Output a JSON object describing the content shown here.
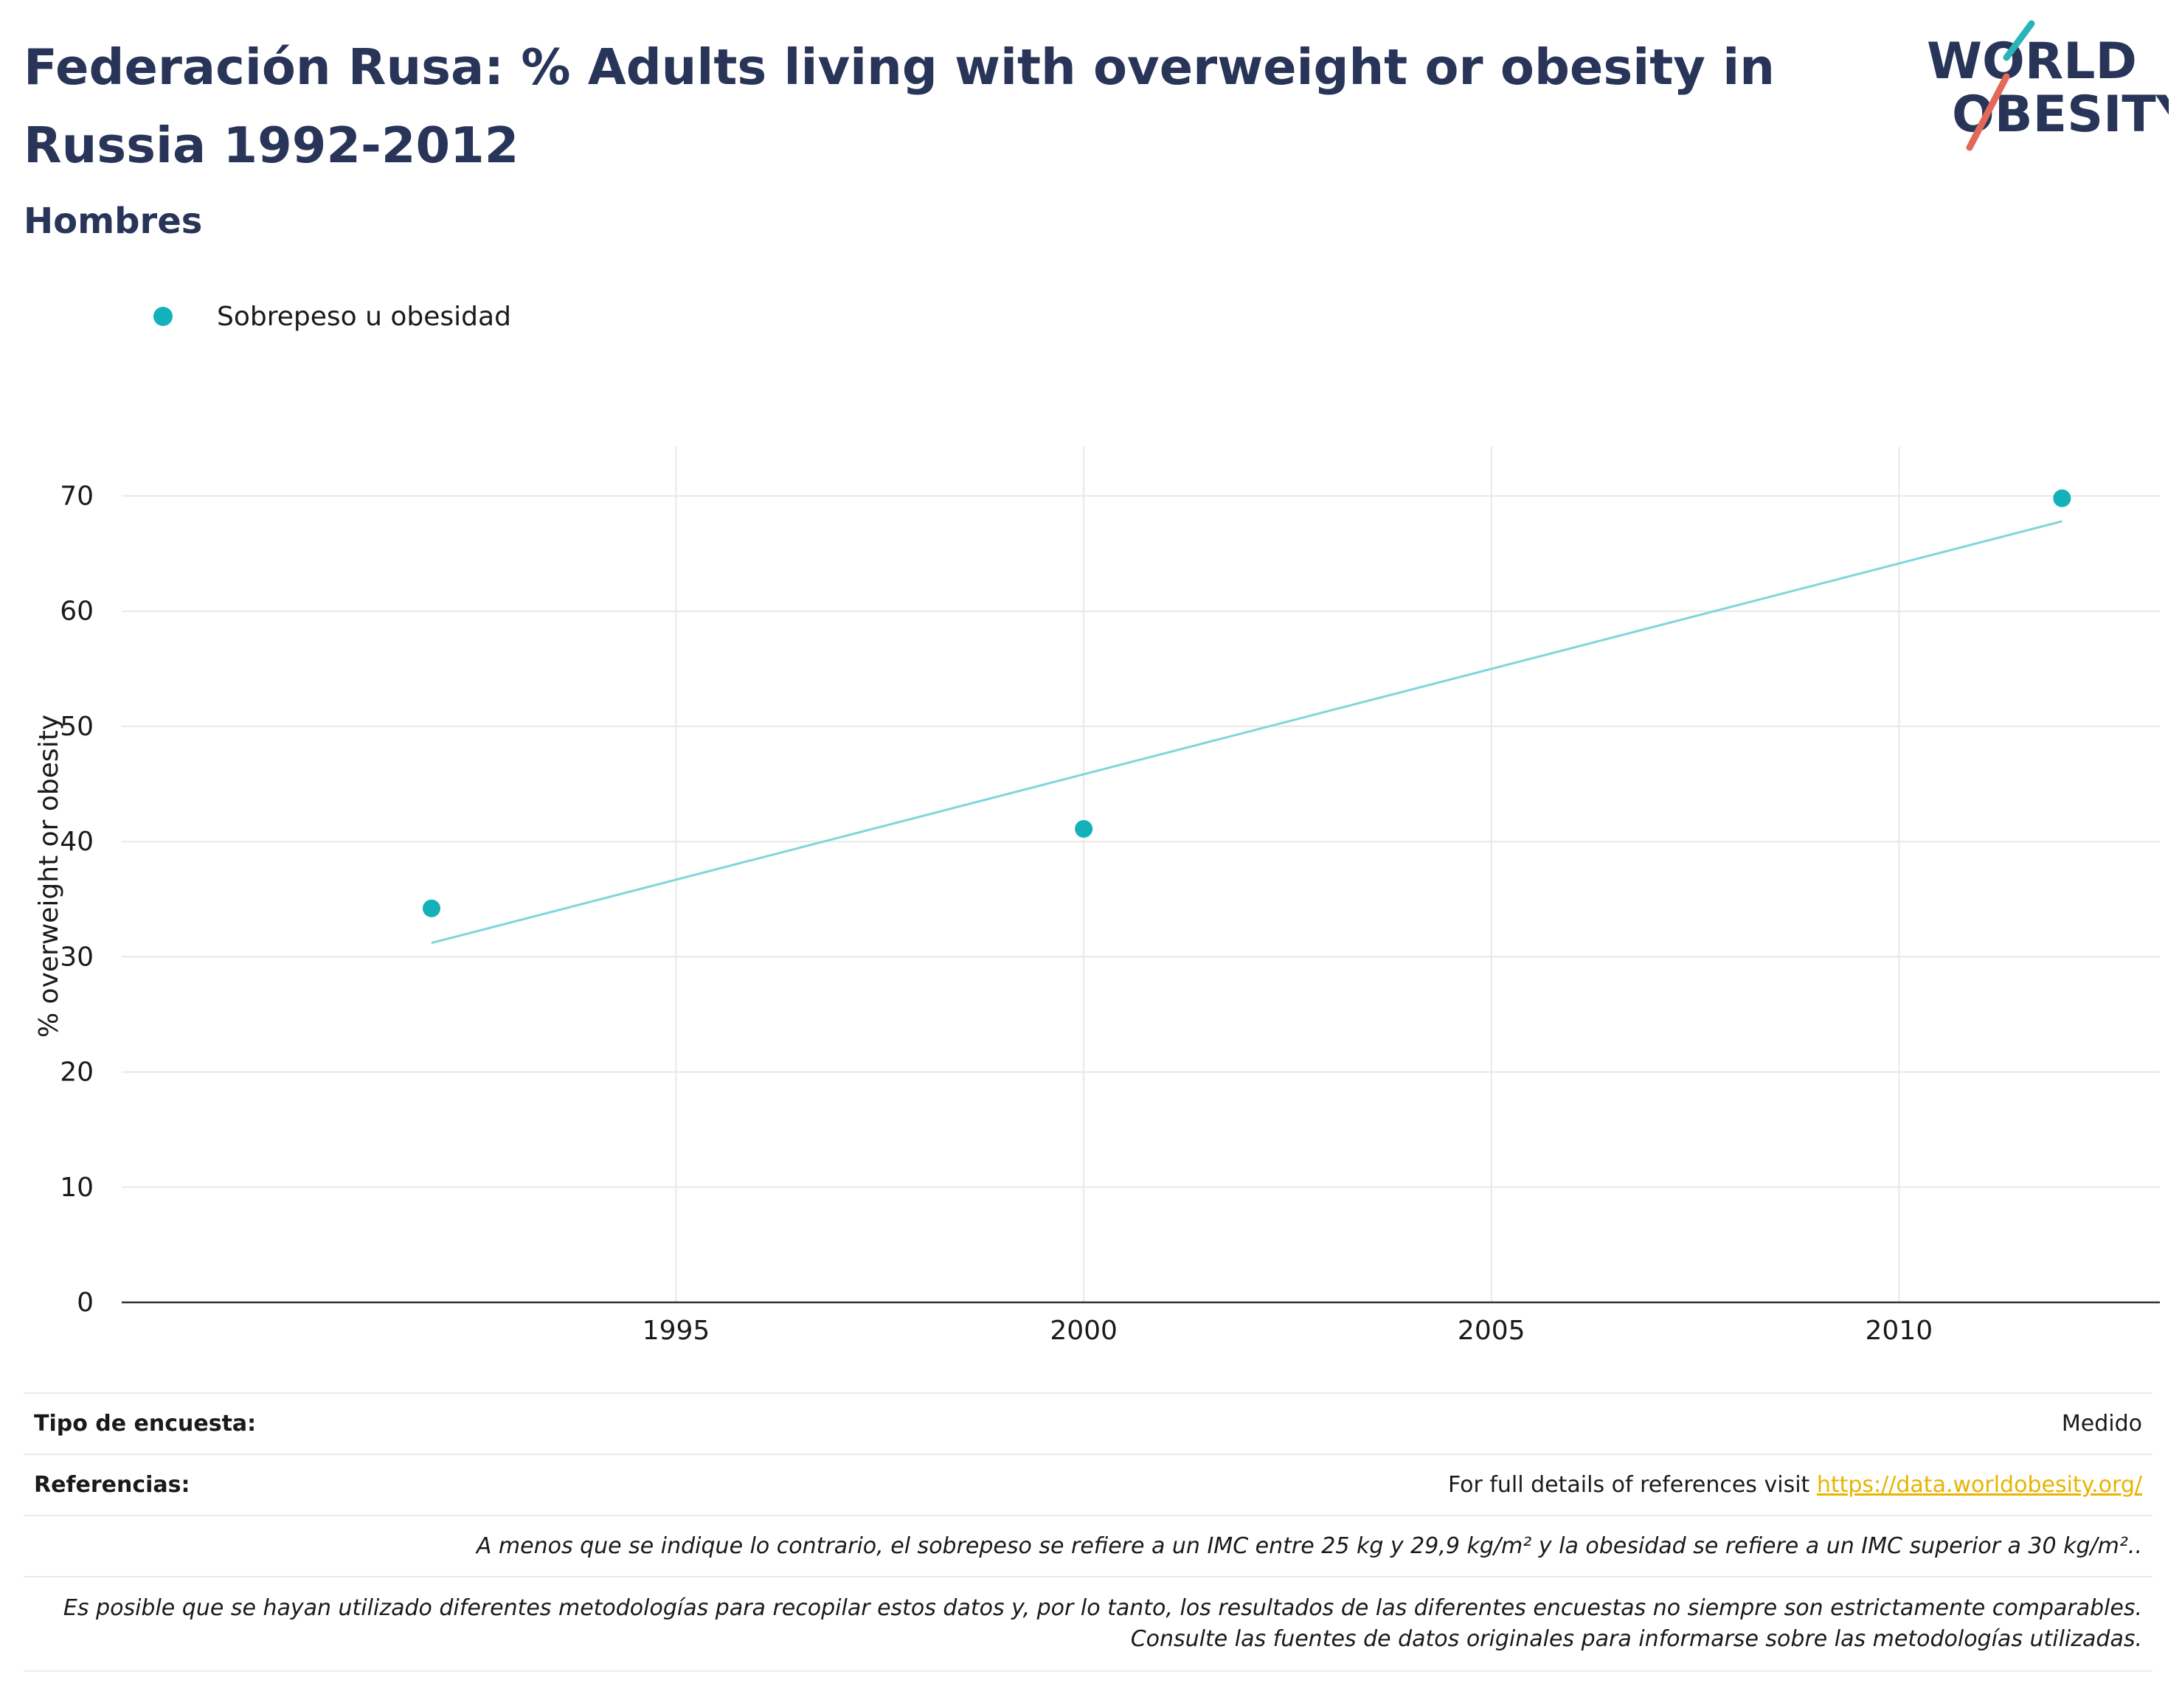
{
  "header": {
    "title": "Federación Rusa: % Adults living with overweight or obesity in Russia 1992-2012",
    "subtitle": "Hombres",
    "logo": {
      "line1": "WORLD",
      "line2": "OBESITY",
      "accent_teal": "#2ab3b8",
      "accent_red": "#e2685a",
      "text_color": "#283559"
    }
  },
  "legend": {
    "label": "Sobrepeso u obesidad",
    "color": "#14b1bb"
  },
  "chart_data": {
    "type": "scatter",
    "ylabel": "% overweight or obesity",
    "xlabel": "",
    "xlim": [
      1988.2,
      2013.2
    ],
    "ylim": [
      0,
      74
    ],
    "xticks": [
      1995,
      2000,
      2005,
      2010
    ],
    "yticks": [
      0,
      10,
      20,
      30,
      40,
      50,
      60,
      70
    ],
    "grid": true,
    "legend_position": "top-left",
    "series": [
      {
        "name": "Sobrepeso u obesidad",
        "color": "#14b1bb",
        "x": [
          1992,
          2000,
          2012
        ],
        "y": [
          34.2,
          41.1,
          69.8
        ]
      }
    ],
    "trendline": {
      "color": "#7fd6da",
      "x": [
        1992,
        2012
      ],
      "y": [
        31.2,
        67.8
      ]
    }
  },
  "footer": {
    "survey_type_label": "Tipo de encuesta:",
    "survey_type_value": "Medido",
    "references_label": "Referencias:",
    "references_text": "For full details of references visit ",
    "references_link": "https://data.worldobesity.org/",
    "note1": "A menos que se indique lo contrario, el sobrepeso se refiere a un IMC entre 25 kg y 29,9 kg/m² y la obesidad se refiere a un IMC superior a 30 kg/m²..",
    "note2": "Es posible que se hayan utilizado diferentes metodologías para recopilar estos datos y, por lo tanto, los resultados de las diferentes encuestas no siempre son estrictamente comparables. Consulte las fuentes de datos originales para informarse sobre las metodologías utilizadas."
  }
}
